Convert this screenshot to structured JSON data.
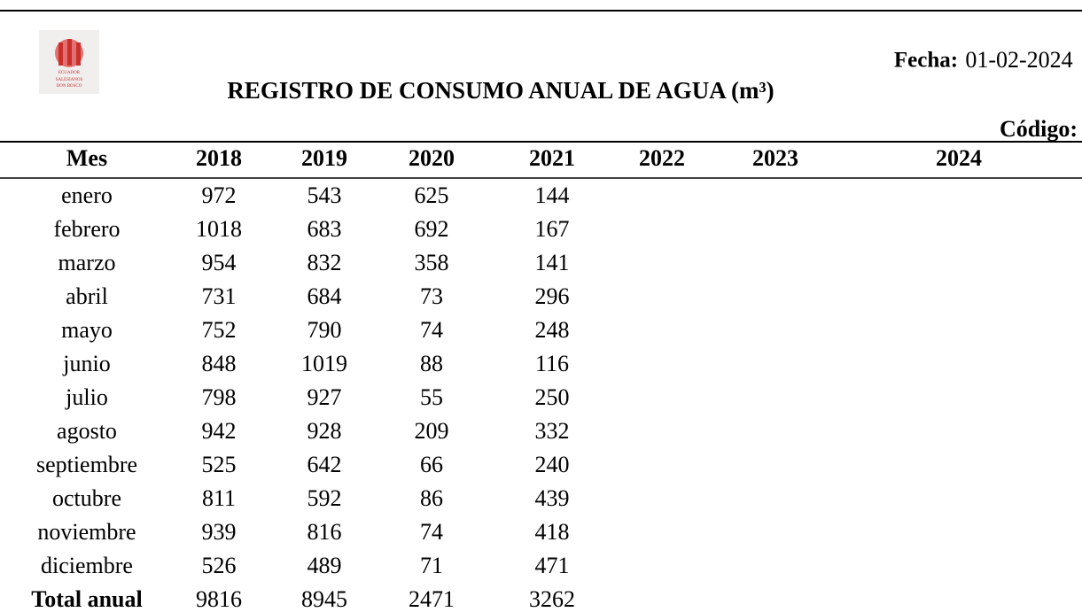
{
  "header": {
    "title": "REGISTRO DE CONSUMO ANUAL DE AGUA (m³)",
    "date_label": "Fecha:",
    "date": "01-02-2024",
    "code_label": "Código:",
    "logo": [
      "ECUADOR",
      "SALESIANOS",
      "DON BOSCO"
    ]
  },
  "table": {
    "columns": [
      "Mes",
      "2018",
      "2019",
      "2020",
      "2021",
      "2022",
      "2023",
      "2024"
    ],
    "rows": [
      [
        "enero",
        972,
        543,
        625,
        144
      ],
      [
        "febrero",
        1018,
        683,
        692,
        167
      ],
      [
        "marzo",
        954,
        832,
        358,
        141
      ],
      [
        "abril",
        731,
        684,
        73,
        296
      ],
      [
        "mayo",
        752,
        790,
        74,
        248
      ],
      [
        "junio",
        848,
        1019,
        88,
        116
      ],
      [
        "julio",
        798,
        927,
        55,
        250
      ],
      [
        "agosto",
        942,
        928,
        209,
        332
      ],
      [
        "septiembre",
        525,
        642,
        66,
        240
      ],
      [
        "octubre",
        811,
        592,
        86,
        439
      ],
      [
        "noviembre",
        939,
        816,
        74,
        418
      ],
      [
        "diciembre",
        526,
        489,
        71,
        471
      ]
    ],
    "total": [
      "Total anual",
      9816,
      8945,
      2471,
      3262
    ]
  }
}
